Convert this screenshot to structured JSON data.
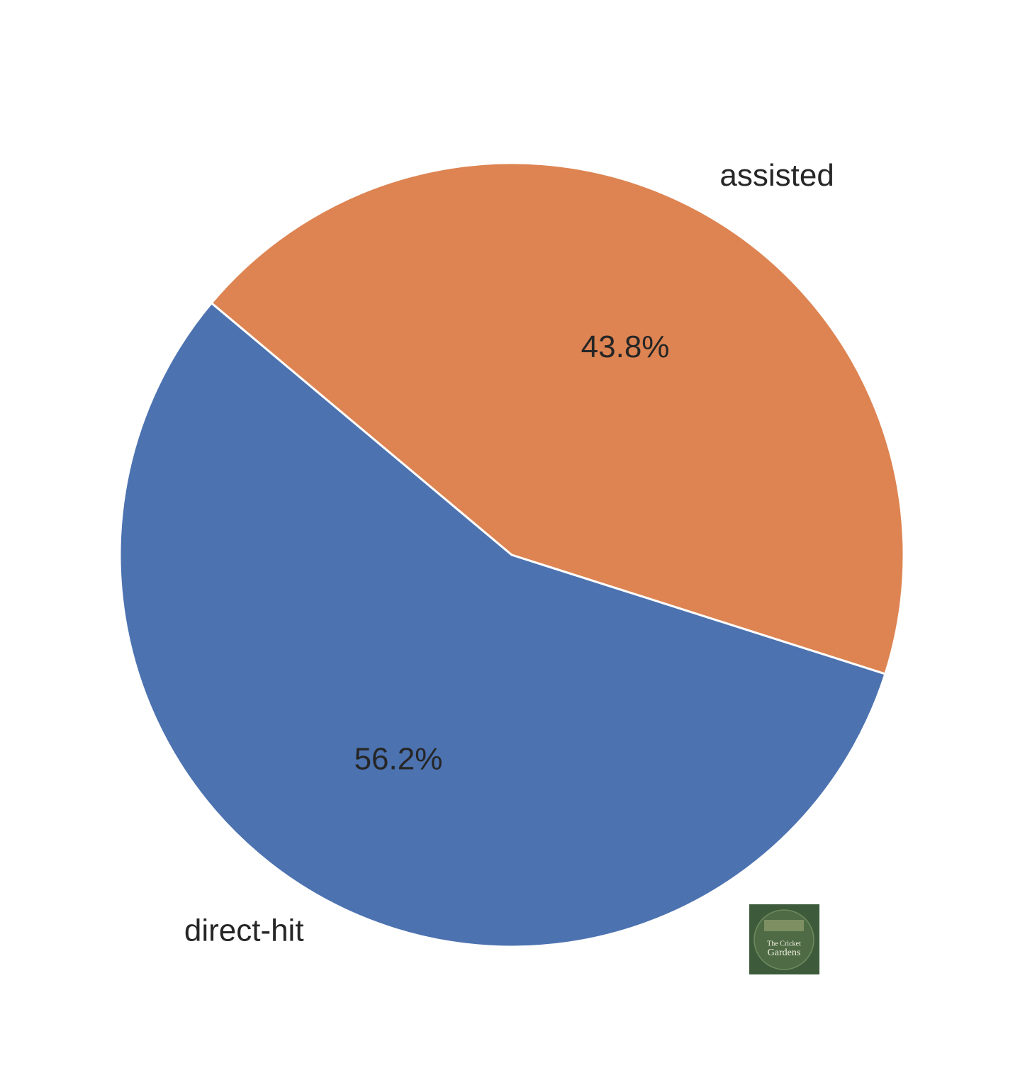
{
  "chart_data": {
    "type": "pie",
    "categories": [
      "direct-hit",
      "assisted"
    ],
    "values": [
      56.2,
      43.8
    ],
    "value_labels": [
      "56.2%",
      "43.8%"
    ],
    "colors": [
      "#4c72b0",
      "#dd8452"
    ],
    "start_angle": 140,
    "direction": "counterclockwise"
  },
  "logo": {
    "line1": "The Cricket",
    "line2": "Gardens"
  }
}
